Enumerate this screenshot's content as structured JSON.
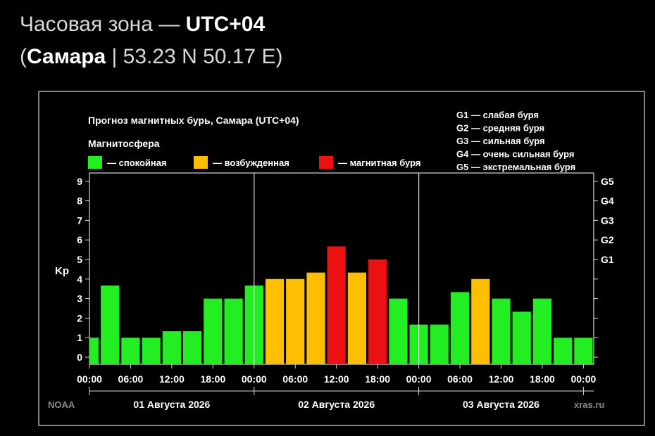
{
  "header": {
    "line1_prefix": "Часовая зона — ",
    "line1_zone": "UTC+04",
    "line2_open": "(",
    "line2_city": "Самара",
    "line2_rest": " | 53.23 N 50.17 E)"
  },
  "chart_data": {
    "type": "bar",
    "title": "Прогноз магнитных бурь, Самара (UTC+04)",
    "legend_title": "Магнитосфера",
    "legend": [
      {
        "label": "— спокойная",
        "color": "#22ee22"
      },
      {
        "label": "— возбужденная",
        "color": "#ffbf00"
      },
      {
        "label": "— магнитная буря",
        "color": "#ee1111"
      }
    ],
    "g_scale_legend": [
      "G1 — слабая буря",
      "G2 — средняя буря",
      "G3 — сильная буря",
      "G4 — очень сильная буря",
      "G5 — экстремальная буря"
    ],
    "ylabel": "Kp",
    "ylim": [
      0,
      9
    ],
    "y_ticks": [
      "0",
      "1",
      "2",
      "3",
      "4",
      "5",
      "6",
      "7",
      "8",
      "9"
    ],
    "right_ticks": [
      {
        "label": "G1",
        "value": 5
      },
      {
        "label": "G2",
        "value": 6
      },
      {
        "label": "G3",
        "value": 7
      },
      {
        "label": "G4",
        "value": 8
      },
      {
        "label": "G5",
        "value": 9
      }
    ],
    "x_tick_labels": [
      "00:00",
      "06:00",
      "12:00",
      "18:00",
      "00:00",
      "06:00",
      "12:00",
      "18:00",
      "00:00",
      "06:00",
      "12:00",
      "18:00",
      "00:00"
    ],
    "days": [
      "01 Августа 2026",
      "02 Августа 2026",
      "03 Августа 2026"
    ],
    "values": [
      1.0,
      3.67,
      1.0,
      1.0,
      1.33,
      1.33,
      3.0,
      3.0,
      3.67,
      4.0,
      4.0,
      4.33,
      5.67,
      4.33,
      5.0,
      3.0,
      1.67,
      1.67,
      3.33,
      4.0,
      3.0,
      2.33,
      3.0,
      1.0,
      1.0
    ],
    "colors": {
      "quiet": "#22ee22",
      "active": "#ffbf00",
      "storm": "#ee1111"
    },
    "source_left": "NOAA",
    "source_right": "xras.ru",
    "grid": false
  }
}
